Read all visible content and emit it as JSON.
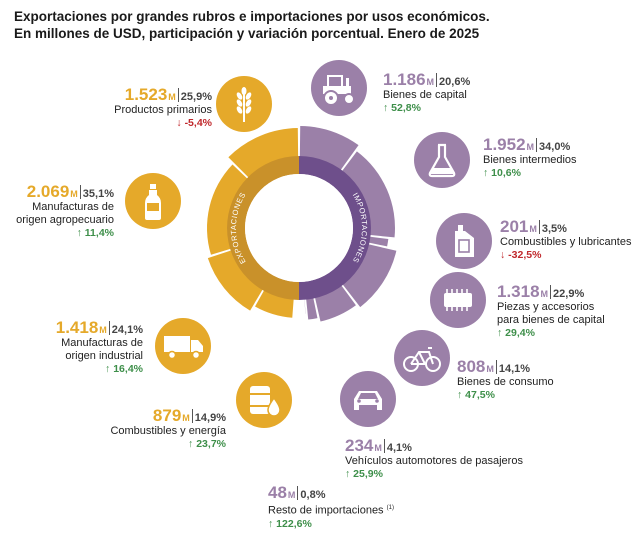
{
  "title_line1": "Exportaciones por grandes rubros e importaciones por usos económicos.",
  "title_line2": "En millones de USD, participación y variación porcentual. Enero de 2025",
  "unit": "M",
  "ring_labels": {
    "left": "EXPORTACIONES",
    "right": "IMPORTACIONES"
  },
  "colors": {
    "exports": "#e5a92a",
    "imports": "#9b80a8",
    "exports_dark": "#c9912a",
    "imports_dark": "#6e4f8b"
  },
  "chart_data": {
    "type": "pie",
    "exports": [
      {
        "name": "Productos primarios",
        "value": 1523,
        "value_label": "1.523",
        "share": "25,9%",
        "variation": "-5,4%",
        "direction": "down",
        "icon": "wheat-icon"
      },
      {
        "name": "Manufacturas de origen agropecuario",
        "value": 2069,
        "value_label": "2.069",
        "share": "35,1%",
        "variation": "11,4%",
        "direction": "up",
        "icon": "bottle-icon"
      },
      {
        "name": "Manufacturas de origen industrial",
        "value": 1418,
        "value_label": "1.418",
        "share": "24,1%",
        "variation": "16,4%",
        "direction": "up",
        "icon": "truck-icon"
      },
      {
        "name": "Combustibles y energía",
        "value": 879,
        "value_label": "879",
        "share": "14,9%",
        "variation": "23,7%",
        "direction": "up",
        "icon": "oil-barrel-icon"
      }
    ],
    "imports": [
      {
        "name": "Bienes de capital",
        "value": 1186,
        "value_label": "1.186",
        "share": "20,6%",
        "variation": "52,8%",
        "direction": "up",
        "icon": "tractor-icon"
      },
      {
        "name": "Bienes intermedios",
        "value": 1952,
        "value_label": "1.952",
        "share": "34,0%",
        "variation": "10,6%",
        "direction": "up",
        "icon": "flask-icon"
      },
      {
        "name": "Combustibles y lubricantes",
        "value": 201,
        "value_label": "201",
        "share": "3,5%",
        "variation": "-32,5%",
        "direction": "down",
        "icon": "jerrycan-icon"
      },
      {
        "name": "Piezas y accesorios para bienes de capital",
        "value": 1318,
        "value_label": "1.318",
        "share": "22,9%",
        "variation": "29,4%",
        "direction": "up",
        "icon": "chip-icon"
      },
      {
        "name": "Bienes de consumo",
        "value": 808,
        "value_label": "808",
        "share": "14,1%",
        "variation": "47,5%",
        "direction": "up",
        "icon": "bicycle-icon"
      },
      {
        "name": "Vehículos automotores de pasajeros",
        "value": 234,
        "value_label": "234",
        "share": "4,1%",
        "variation": "25,9%",
        "direction": "up",
        "icon": "car-icon"
      },
      {
        "name": "Resto de importaciones",
        "footnote": "(1)",
        "value": 48,
        "value_label": "48",
        "share": "0,8%",
        "variation": "122,6%",
        "direction": "up",
        "icon": "none"
      }
    ]
  }
}
